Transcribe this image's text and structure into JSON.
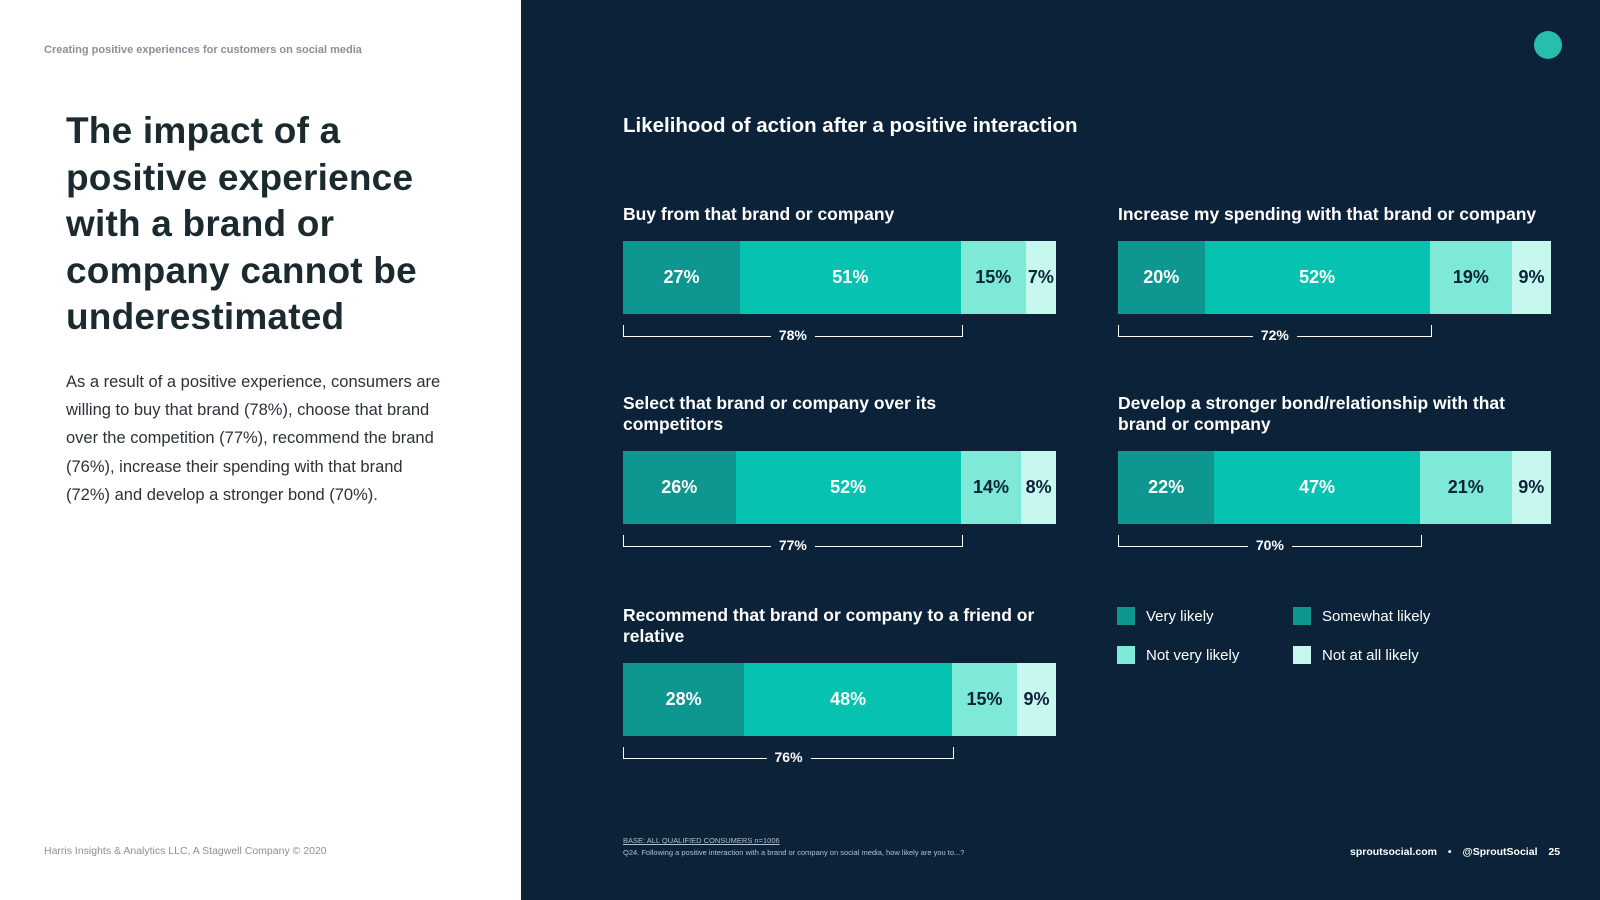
{
  "left": {
    "eyebrow": "Creating positive experiences for customers on social media",
    "headline": "The impact of a positive experience with a brand or company cannot be underestimated",
    "body": "As a result of a positive experience, consumers are willing to buy that brand (78%), choose that brand over the competition (77%), recommend the brand (76%), increase their spending with that brand (72%) and develop a stronger bond (70%).",
    "footer": "Harris Insights & Analytics LLC, A Stagwell Company © 2020"
  },
  "colors": {
    "panel": "#0b2238",
    "very_likely": "#0e9690",
    "somewhat_likely": "#06c2b1",
    "not_very_likely": "#7ee9d6",
    "not_at_all_likely": "#c7f8ef",
    "brand_dot": "#26bfae"
  },
  "chart_data": {
    "type": "bar",
    "orientation": "horizontal-stacked-100",
    "title": "Likelihood of action after a positive interaction",
    "series_names": [
      "Very likely",
      "Somewhat likely",
      "Not very likely",
      "Not at all likely"
    ],
    "groups": [
      {
        "title": "Buy from that brand or company",
        "values": [
          27,
          51,
          15,
          7
        ],
        "labels": [
          "27%",
          "51%",
          "15%",
          "7%"
        ],
        "total_likely": "78%"
      },
      {
        "title": "Increase my spending with that brand or company",
        "values": [
          20,
          52,
          19,
          9
        ],
        "labels": [
          "20%",
          "52%",
          "19%",
          "9%"
        ],
        "total_likely": "72%"
      },
      {
        "title": "Select that brand or company over its competitors",
        "values": [
          26,
          52,
          14,
          8
        ],
        "labels": [
          "26%",
          "52%",
          "14%",
          "8%"
        ],
        "total_likely": "77%"
      },
      {
        "title": "Develop a stronger bond/relationship with that brand or company",
        "values": [
          22,
          47,
          21,
          9
        ],
        "labels": [
          "22%",
          "47%",
          "21%",
          "9%"
        ],
        "total_likely": "70%"
      },
      {
        "title": "Recommend that brand or company to a friend or relative",
        "values": [
          28,
          48,
          15,
          9
        ],
        "labels": [
          "28%",
          "48%",
          "15%",
          "9%"
        ],
        "total_likely": "76%"
      }
    ],
    "legend": [
      "Very likely",
      "Somewhat likely",
      "Not very likely",
      "Not at all likely"
    ]
  },
  "notes": {
    "base": "BASE: ALL QUALIFIED CONSUMERS n=1006",
    "question": "Q24. Following a positive interaction with a brand or company on social media, how likely are you to...?"
  },
  "footer_right": {
    "site": "sproutsocial.com",
    "separator": "•",
    "handle": "@SproutSocial",
    "page": "25"
  }
}
